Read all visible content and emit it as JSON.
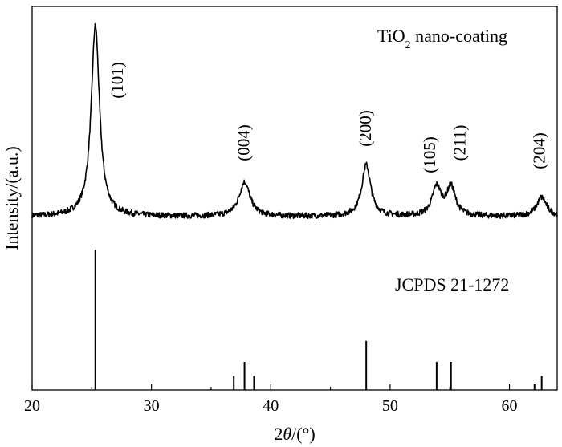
{
  "chart_data": {
    "type": "line",
    "xlabel_prefix": "2",
    "xlabel_var": "θ",
    "xlabel_unit": "/(°)",
    "ylabel": "Intensity/(a.u.)",
    "xlim": [
      20,
      64
    ],
    "x_ticks": [
      {
        "value": 20,
        "label": "20"
      },
      {
        "value": 30,
        "label": "30"
      },
      {
        "value": 40,
        "label": "40"
      },
      {
        "value": 50,
        "label": "50"
      },
      {
        "value": 60,
        "label": "60"
      }
    ],
    "grid": false,
    "series": [
      {
        "name_main": "TiO",
        "name_sub": "2",
        "name_rest": " nano-coating",
        "baseline": 0.16,
        "peaks": [
          {
            "x": 25.3,
            "height": 1.0,
            "width": 0.42,
            "label": "(101)"
          },
          {
            "x": 37.8,
            "height": 0.18,
            "width": 0.55,
            "label": "(004)"
          },
          {
            "x": 48.0,
            "height": 0.27,
            "width": 0.45,
            "label": "(200)"
          },
          {
            "x": 53.9,
            "height": 0.15,
            "width": 0.45,
            "label": "(105)"
          },
          {
            "x": 55.1,
            "height": 0.15,
            "width": 0.45,
            "label": "(211)"
          },
          {
            "x": 62.7,
            "height": 0.1,
            "width": 0.5,
            "label": "(204)"
          }
        ]
      },
      {
        "name": "JCPDS 21-1272",
        "type": "stick",
        "sticks": [
          {
            "x": 25.3,
            "intensity": 100
          },
          {
            "x": 36.9,
            "intensity": 10
          },
          {
            "x": 37.8,
            "intensity": 20
          },
          {
            "x": 38.6,
            "intensity": 10
          },
          {
            "x": 48.0,
            "intensity": 35
          },
          {
            "x": 53.9,
            "intensity": 20
          },
          {
            "x": 55.1,
            "intensity": 20
          },
          {
            "x": 62.1,
            "intensity": 4
          },
          {
            "x": 62.7,
            "intensity": 10
          }
        ]
      }
    ]
  }
}
